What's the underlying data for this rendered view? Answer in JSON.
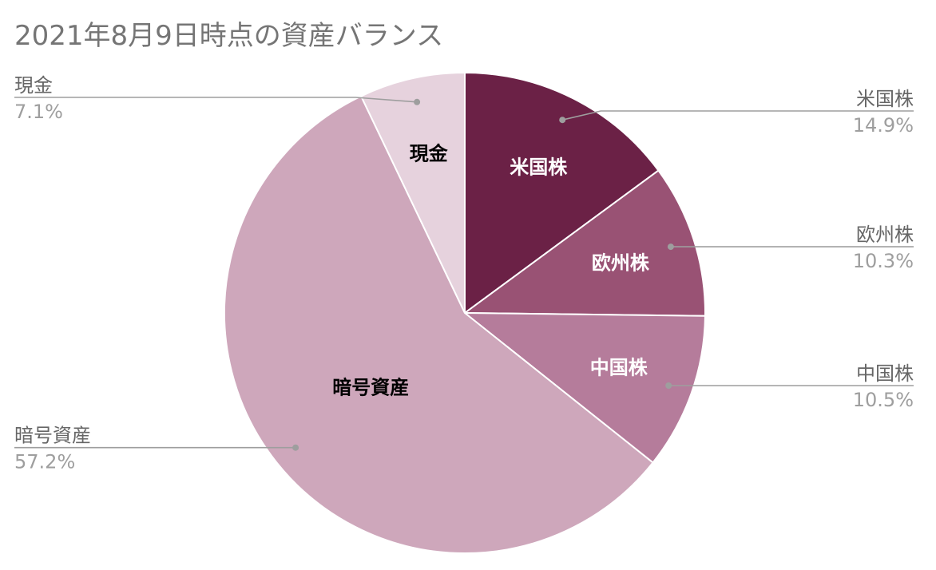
{
  "chart_data": {
    "type": "pie",
    "title": "2021年8月9日時点の資産バランス",
    "slices": [
      {
        "label": "米国株",
        "value": 14.9,
        "value_label": "14.9%",
        "color": "#6b2146",
        "text_color": "#ffffff"
      },
      {
        "label": "欧州株",
        "value": 10.3,
        "value_label": "10.3%",
        "color": "#995274",
        "text_color": "#ffffff"
      },
      {
        "label": "中国株",
        "value": 10.5,
        "value_label": "10.5%",
        "color": "#b57c9b",
        "text_color": "#ffffff"
      },
      {
        "label": "暗号資産",
        "value": 57.2,
        "value_label": "57.2%",
        "color": "#cea7bb",
        "text_color": "#000000"
      },
      {
        "label": "現金",
        "value": 7.1,
        "value_label": "7.1%",
        "color": "#e6d2dd",
        "text_color": "#000000"
      }
    ],
    "start_angle": "12 o'clock",
    "direction": "clockwise",
    "legend": "none"
  }
}
